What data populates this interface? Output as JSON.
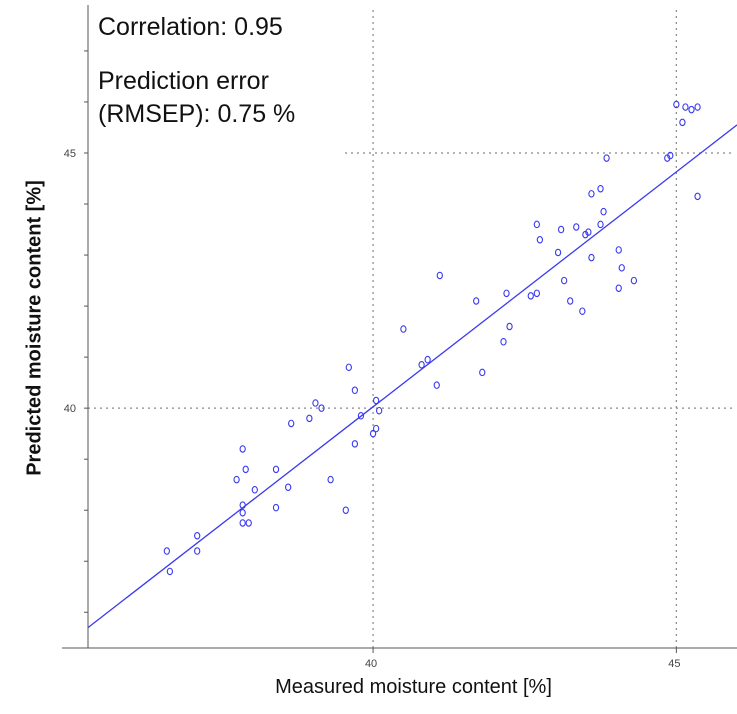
{
  "chart_data": {
    "type": "scatter",
    "title": "",
    "xlabel": "Measured moisture content [%]",
    "ylabel": "Predicted moisture content [%]",
    "xlim": [
      35.3,
      46
    ],
    "ylim": [
      35.3,
      47.9
    ],
    "xticks": [
      {
        "value": 40,
        "label": "40"
      },
      {
        "value": 45,
        "label": "45"
      }
    ],
    "yticks": [
      {
        "value": 40,
        "label": "40"
      },
      {
        "value": 45,
        "label": "45"
      }
    ],
    "grid": "dotted reference lines at 40 and 45",
    "annotations": [
      "Correlation: 0.95",
      "Prediction error",
      "(RMSEP): 0.75 %"
    ],
    "series": [
      {
        "color": "#3a3af0",
        "points": [
          [
            36.6,
            37.2
          ],
          [
            36.65,
            36.8
          ],
          [
            37.1,
            37.5
          ],
          [
            37.1,
            37.2
          ],
          [
            37.75,
            38.6
          ],
          [
            37.85,
            39.2
          ],
          [
            37.85,
            38.1
          ],
          [
            37.85,
            37.95
          ],
          [
            37.85,
            37.75
          ],
          [
            37.95,
            37.75
          ],
          [
            37.9,
            38.8
          ],
          [
            38.05,
            38.4
          ],
          [
            38.4,
            38.8
          ],
          [
            38.4,
            38.05
          ],
          [
            38.6,
            38.45
          ],
          [
            38.65,
            39.7
          ],
          [
            38.95,
            39.8
          ],
          [
            39.05,
            40.1
          ],
          [
            39.15,
            40.0
          ],
          [
            39.3,
            38.6
          ],
          [
            39.55,
            38.0
          ],
          [
            39.6,
            40.8
          ],
          [
            39.7,
            40.35
          ],
          [
            39.7,
            39.3
          ],
          [
            39.8,
            39.85
          ],
          [
            40.0,
            39.5
          ],
          [
            40.05,
            39.6
          ],
          [
            40.05,
            40.15
          ],
          [
            40.1,
            39.95
          ],
          [
            40.5,
            41.55
          ],
          [
            40.8,
            40.85
          ],
          [
            40.9,
            40.95
          ],
          [
            41.05,
            40.45
          ],
          [
            41.1,
            42.6
          ],
          [
            41.7,
            42.1
          ],
          [
            41.8,
            40.7
          ],
          [
            42.15,
            41.3
          ],
          [
            42.2,
            42.25
          ],
          [
            42.25,
            41.6
          ],
          [
            42.6,
            42.2
          ],
          [
            42.7,
            42.25
          ],
          [
            42.7,
            43.6
          ],
          [
            42.75,
            43.3
          ],
          [
            43.05,
            43.05
          ],
          [
            43.1,
            43.5
          ],
          [
            43.15,
            42.5
          ],
          [
            43.25,
            42.1
          ],
          [
            43.35,
            43.55
          ],
          [
            43.45,
            41.9
          ],
          [
            43.5,
            43.4
          ],
          [
            43.55,
            43.45
          ],
          [
            43.6,
            42.95
          ],
          [
            43.6,
            44.2
          ],
          [
            43.75,
            44.3
          ],
          [
            43.75,
            43.6
          ],
          [
            43.8,
            43.85
          ],
          [
            43.85,
            44.9
          ],
          [
            44.05,
            43.1
          ],
          [
            44.05,
            42.35
          ],
          [
            44.1,
            42.75
          ],
          [
            44.3,
            42.5
          ],
          [
            44.85,
            44.9
          ],
          [
            44.9,
            44.95
          ],
          [
            45.0,
            45.95
          ],
          [
            45.1,
            45.6
          ],
          [
            45.15,
            45.9
          ],
          [
            45.25,
            45.85
          ],
          [
            45.35,
            45.9
          ],
          [
            45.35,
            44.15
          ]
        ]
      }
    ],
    "fit_line": {
      "color": "#3a3af0",
      "x": [
        35.3,
        46
      ],
      "y": [
        35.7,
        45.55
      ]
    }
  }
}
